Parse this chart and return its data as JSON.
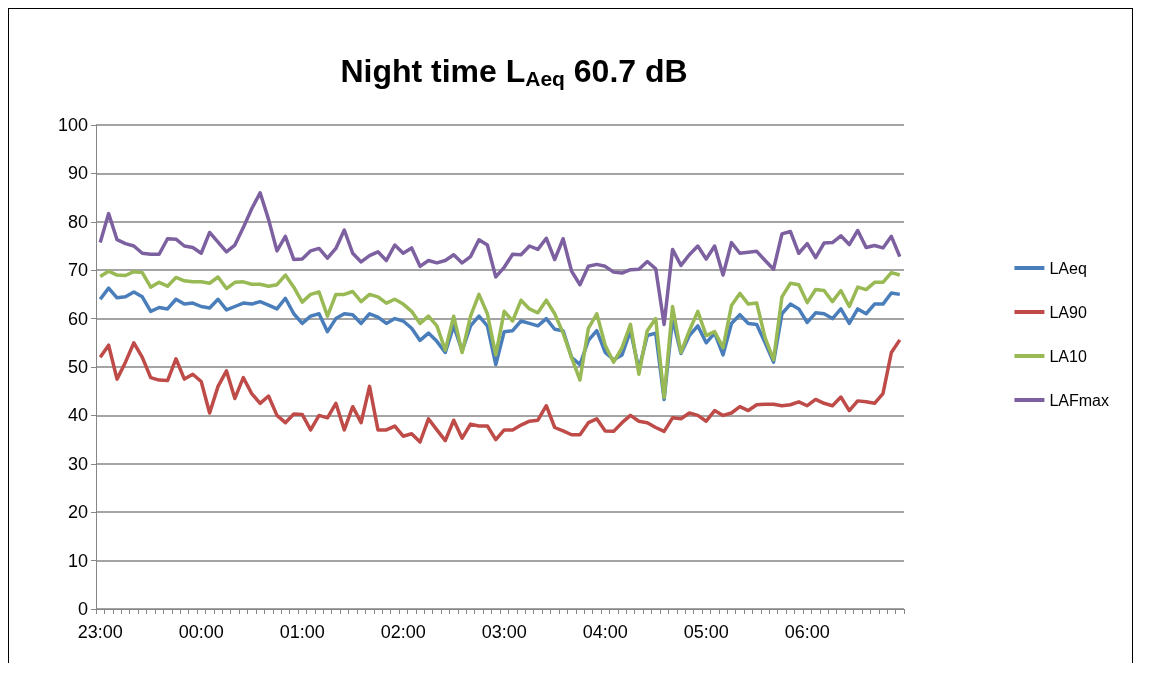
{
  "chart_data": {
    "type": "line",
    "title": "Night time L$_{Aeq}$ 60.7 dB",
    "categories": [
      "23:00",
      null,
      null,
      null,
      null,
      null,
      null,
      null,
      null,
      null,
      null,
      null,
      "00:00",
      null,
      null,
      null,
      null,
      null,
      null,
      null,
      null,
      null,
      null,
      null,
      "01:00",
      null,
      null,
      null,
      null,
      null,
      null,
      null,
      null,
      null,
      null,
      null,
      "02:00",
      null,
      null,
      null,
      null,
      null,
      null,
      null,
      null,
      null,
      null,
      null,
      "03:00",
      null,
      null,
      null,
      null,
      null,
      null,
      null,
      null,
      null,
      null,
      null,
      "04:00",
      null,
      null,
      null,
      null,
      null,
      null,
      null,
      null,
      null,
      null,
      null,
      "05:00",
      null,
      null,
      null,
      null,
      null,
      null,
      null,
      null,
      null,
      null,
      null,
      "06:00",
      null,
      null,
      null,
      null,
      null,
      null,
      null,
      null,
      null,
      null,
      null
    ],
    "series": [
      {
        "name": "LAeq",
        "color": "#4a7ebb",
        "values": [
          64.0,
          66.3,
          64.3,
          64.5,
          65.5,
          64.5,
          61.5,
          62.3,
          62.0,
          64.0,
          63.0,
          63.2,
          62.5,
          62.2,
          64.0,
          61.8,
          62.5,
          63.2,
          63.0,
          63.5,
          62.8,
          62.0,
          64.2,
          61.0,
          59.0,
          60.5,
          61.0,
          57.3,
          60.0,
          61.0,
          60.8,
          59.0,
          61.0,
          60.3,
          59.0,
          60.0,
          59.5,
          58.0,
          55.5,
          57.0,
          55.3,
          53.0,
          58.5,
          53.3,
          58.5,
          60.5,
          58.5,
          50.5,
          57.3,
          57.5,
          59.5,
          59.0,
          58.5,
          60.0,
          57.8,
          57.5,
          52.0,
          50.5,
          55.5,
          57.5,
          53.0,
          51.5,
          52.5,
          57.5,
          49.5,
          56.5,
          57.0,
          43.3,
          60.0,
          52.8,
          56.5,
          58.5,
          55.0,
          57.0,
          52.5,
          59.0,
          60.8,
          59.0,
          58.8,
          55.0,
          51.0,
          61.0,
          63.0,
          62.0,
          59.2,
          61.2,
          61.0,
          60.0,
          62.0,
          59.0,
          62.0,
          61.0,
          63.0,
          63.0,
          65.3,
          65.0
        ]
      },
      {
        "name": "LA90",
        "color": "#be4b48",
        "values": [
          52.0,
          54.5,
          47.5,
          51.0,
          55.0,
          52.0,
          47.8,
          47.3,
          47.2,
          51.7,
          47.5,
          48.5,
          47.0,
          40.5,
          46.0,
          49.2,
          43.5,
          47.8,
          44.5,
          42.5,
          44.0,
          40.0,
          38.5,
          40.3,
          40.2,
          37.0,
          40.0,
          39.5,
          42.5,
          37.0,
          41.8,
          38.5,
          46.0,
          37.0,
          37.0,
          37.8,
          35.7,
          36.2,
          34.5,
          39.3,
          37.0,
          34.8,
          39.0,
          35.3,
          38.2,
          37.8,
          37.8,
          35.0,
          37.0,
          37.0,
          38.0,
          38.8,
          39.0,
          42.0,
          37.5,
          36.8,
          36.0,
          36.0,
          38.5,
          39.3,
          36.8,
          36.7,
          38.5,
          40.0,
          38.8,
          38.5,
          37.5,
          36.7,
          39.5,
          39.3,
          40.5,
          40.0,
          38.8,
          41.0,
          40.0,
          40.5,
          41.8,
          41.0,
          42.2,
          42.3,
          42.3,
          42.0,
          42.2,
          42.8,
          42.0,
          43.3,
          42.5,
          42.0,
          43.8,
          41.0,
          43.0,
          42.8,
          42.5,
          44.5,
          53.0,
          55.6
        ]
      },
      {
        "name": "LA10",
        "color": "#98b954",
        "values": [
          68.7,
          69.8,
          69.0,
          68.9,
          69.7,
          69.5,
          66.5,
          67.5,
          66.7,
          68.5,
          67.8,
          67.6,
          67.6,
          67.3,
          68.6,
          66.2,
          67.5,
          67.6,
          67.1,
          67.1,
          66.7,
          67.0,
          69.0,
          66.5,
          63.4,
          65.0,
          65.5,
          60.5,
          65.0,
          65.0,
          65.6,
          63.5,
          65.0,
          64.5,
          63.2,
          64.0,
          63.0,
          61.5,
          59.0,
          60.5,
          58.5,
          53.5,
          60.5,
          53.0,
          60.5,
          65.0,
          61.0,
          52.5,
          61.5,
          59.5,
          63.8,
          62.0,
          61.2,
          63.8,
          61.0,
          57.0,
          52.0,
          47.3,
          58.0,
          61.0,
          54.5,
          51.0,
          54.0,
          58.8,
          48.5,
          57.5,
          60.0,
          43.7,
          62.5,
          53.0,
          57.5,
          61.5,
          56.5,
          57.3,
          54.0,
          62.7,
          65.2,
          63.0,
          63.2,
          56.0,
          51.5,
          64.5,
          67.3,
          67.0,
          63.3,
          66.0,
          65.8,
          63.5,
          65.8,
          62.5,
          66.5,
          66.0,
          67.5,
          67.5,
          69.5,
          69.0
        ]
      },
      {
        "name": "LAFmax",
        "color": "#7d60a0",
        "values": [
          75.7,
          81.7,
          76.3,
          75.5,
          75.0,
          73.5,
          73.3,
          73.3,
          76.5,
          76.4,
          75.0,
          74.7,
          73.5,
          77.8,
          75.8,
          73.8,
          75.2,
          78.8,
          82.7,
          86.0,
          80.5,
          74.0,
          77.0,
          72.2,
          72.3,
          74.0,
          74.5,
          72.5,
          74.5,
          78.3,
          73.5,
          71.7,
          73.0,
          73.8,
          72.0,
          75.2,
          73.5,
          74.6,
          70.8,
          72.0,
          71.5,
          72.0,
          73.2,
          71.5,
          72.8,
          76.3,
          75.2,
          68.6,
          70.6,
          73.3,
          73.2,
          75.0,
          74.3,
          76.6,
          72.2,
          76.5,
          69.8,
          67.0,
          70.8,
          71.2,
          70.8,
          69.6,
          69.4,
          70.1,
          70.2,
          71.8,
          70.3,
          58.8,
          74.3,
          71.0,
          73.2,
          75.0,
          72.3,
          75.0,
          69.0,
          75.7,
          73.5,
          73.7,
          73.9,
          72.0,
          70.2,
          77.5,
          78.0,
          73.5,
          75.5,
          72.6,
          75.6,
          75.7,
          77.1,
          75.3,
          78.2,
          74.7,
          75.1,
          74.6,
          77.0,
          72.8
        ]
      }
    ],
    "ylim": [
      0,
      100
    ],
    "yticks": [
      0,
      10,
      20,
      30,
      40,
      50,
      60,
      70,
      80,
      90,
      100
    ],
    "grid": "y",
    "legend": "right",
    "marker": "none",
    "line_style": "solid"
  }
}
